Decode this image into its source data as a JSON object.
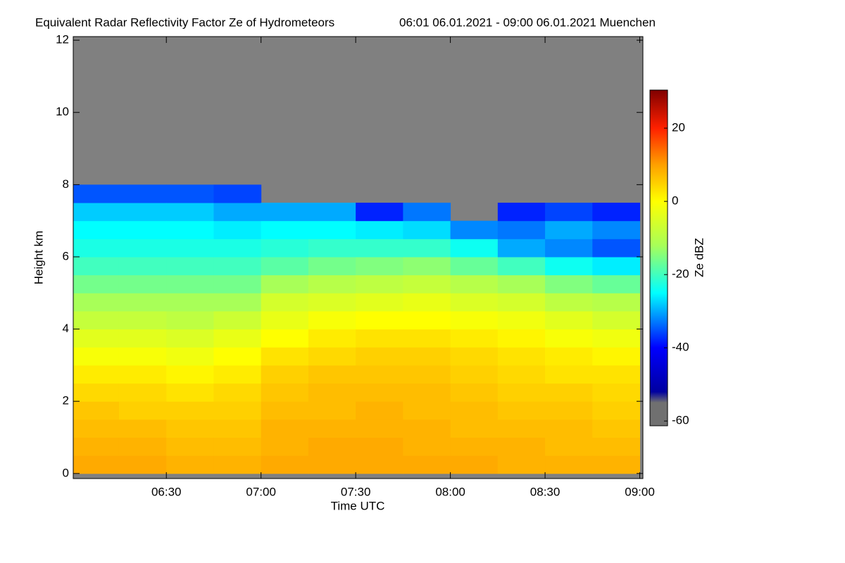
{
  "chart_data": {
    "type": "heatmap",
    "title": "Equivalent Radar Reflectivity Factor Ze of Hydrometeors",
    "subtitle": "06:01 06.01.2021 - 09:00 06.01.2021 Muenchen",
    "x_label": "Time UTC",
    "y_label": "Height km",
    "colorbar_label": "Ze dBZ",
    "xlim": [
      360.5,
      541
    ],
    "ylim": [
      -0.14,
      12.1
    ],
    "xticks": [
      {
        "value": 390,
        "label": "06:30"
      },
      {
        "value": 420,
        "label": "07:00"
      },
      {
        "value": 450,
        "label": "07:30"
      },
      {
        "value": 480,
        "label": "08:00"
      },
      {
        "value": 510,
        "label": "08:30"
      },
      {
        "value": 540,
        "label": "09:00"
      }
    ],
    "yticks": [
      0,
      2,
      4,
      6,
      8,
      10,
      12
    ],
    "clim": [
      -61.3,
      30.4
    ],
    "cticks": [
      20,
      0,
      -20,
      -40,
      -60
    ],
    "nan_color": "#808080",
    "colorscale": [
      [
        -61.3,
        "#707070"
      ],
      [
        -55,
        "#707070"
      ],
      [
        -52,
        "#0000a0"
      ],
      [
        -40,
        "#0000ff"
      ],
      [
        -25,
        "#00ffff"
      ],
      [
        -12,
        "#a8ff58"
      ],
      [
        0,
        "#ffff00"
      ],
      [
        10,
        "#ffa000"
      ],
      [
        20,
        "#ff2000"
      ],
      [
        30.4,
        "#800000"
      ]
    ],
    "x": [
      367.5,
      382.5,
      397.5,
      412.5,
      427.5,
      442.5,
      457.5,
      472.5,
      487.5,
      502.5,
      517.5,
      532.5
    ],
    "y": [
      0.25,
      0.75,
      1.25,
      1.75,
      2.25,
      2.75,
      3.25,
      3.75,
      4.25,
      4.75,
      5.25,
      5.75,
      6.25,
      6.75,
      7.25,
      7.75
    ],
    "z": [
      [
        9,
        8,
        7,
        6,
        4,
        2,
        -1,
        -4,
        -8,
        -12,
        -16,
        -20,
        -23,
        -25,
        -28,
        -35
      ],
      [
        9,
        8,
        7,
        5,
        4,
        2,
        -1,
        -4,
        -8,
        -12,
        -16,
        -20,
        -23,
        -25,
        -28,
        -35
      ],
      [
        8,
        7,
        6,
        5,
        3,
        1,
        -2,
        -5,
        -9,
        -12,
        -16,
        -20,
        -23,
        -25,
        -28,
        -35
      ],
      [
        8,
        7,
        6,
        5,
        4,
        2,
        0,
        -3,
        -7,
        -12,
        -16,
        -20,
        -23,
        -26,
        -30,
        -36
      ],
      [
        9,
        8,
        8,
        7,
        6,
        5,
        3,
        0,
        -3,
        -6,
        -12,
        -18,
        -22,
        -25,
        -30,
        null
      ],
      [
        9,
        9,
        8,
        7,
        7,
        6,
        4,
        2,
        -1,
        -5,
        -10,
        -16,
        -21,
        -25,
        -30,
        null
      ],
      [
        9,
        9,
        8,
        8,
        7,
        6,
        5,
        3,
        0,
        -4,
        -9,
        -15,
        -21,
        -26,
        -38,
        null
      ],
      [
        9,
        8,
        8,
        7,
        7,
        6,
        5,
        3,
        0,
        -3,
        -8,
        -14,
        -21,
        -27,
        -33,
        null
      ],
      [
        9,
        8,
        7,
        7,
        6,
        5,
        4,
        2,
        -1,
        -5,
        -10,
        -17,
        -24,
        -32,
        null,
        null
      ],
      [
        8,
        8,
        7,
        6,
        5,
        4,
        3,
        1,
        -2,
        -6,
        -12,
        -20,
        -30,
        -33,
        -38,
        null
      ],
      [
        8,
        7,
        7,
        6,
        5,
        3,
        2,
        -1,
        -4,
        -9,
        -15,
        -24,
        -32,
        -30,
        -36,
        null
      ],
      [
        8,
        7,
        6,
        5,
        4,
        3,
        1,
        -2,
        -6,
        -10,
        -17,
        -26,
        -35,
        -32,
        -38,
        null
      ]
    ]
  }
}
